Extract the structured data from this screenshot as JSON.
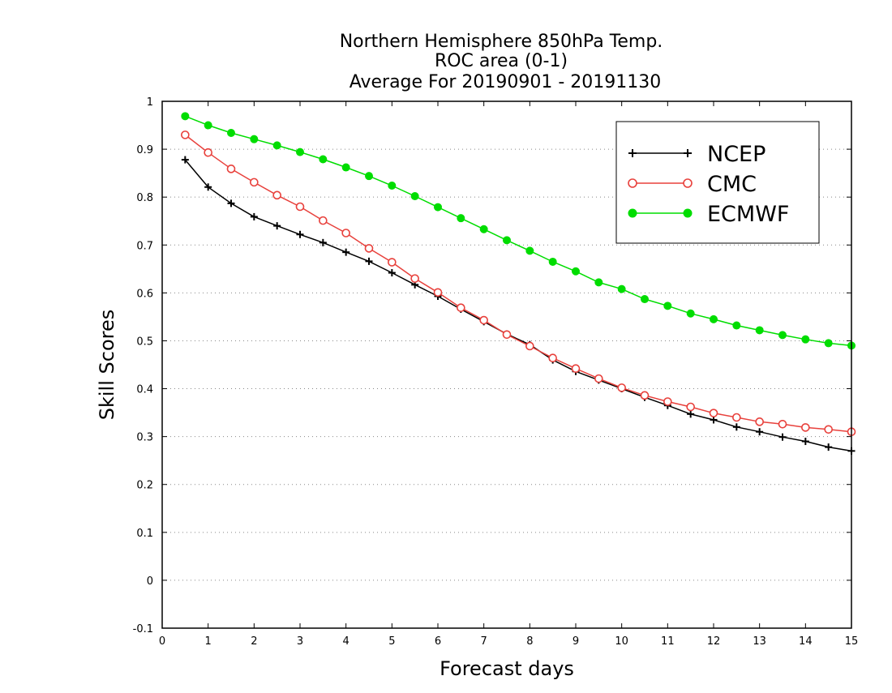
{
  "chart_data": {
    "type": "line",
    "title": [
      "Northern Hemisphere 850hPa Temp.",
      "ROC area (0-1)",
      "Average For 20190901 - 20191130"
    ],
    "xlabel": "Forecast days",
    "ylabel": "Skill Scores",
    "xlim": [
      0,
      15
    ],
    "ylim": [
      -0.1,
      1
    ],
    "x_ticks": [
      0,
      1,
      2,
      3,
      4,
      5,
      6,
      7,
      8,
      9,
      10,
      11,
      12,
      13,
      14,
      15
    ],
    "y_ticks": [
      -0.1,
      0,
      0.1,
      0.2,
      0.3,
      0.4,
      0.5,
      0.6,
      0.7,
      0.8,
      0.9,
      1
    ],
    "y_tick_labels": [
      "-0.1",
      "0",
      "0.1",
      "0.2",
      "0.3",
      "0.4",
      "0.5",
      "0.6",
      "0.7",
      "0.8",
      "0.9",
      "1"
    ],
    "grid": "horizontal dotted",
    "legend_position": "top-right",
    "x": [
      0.5,
      1,
      1.5,
      2,
      2.5,
      3,
      3.5,
      4,
      4.5,
      5,
      5.5,
      6,
      6.5,
      7,
      7.5,
      8,
      8.5,
      9,
      9.5,
      10,
      10.5,
      11,
      11.5,
      12,
      12.5,
      13,
      13.5,
      14,
      14.5,
      15
    ],
    "series": [
      {
        "name": "NCEP",
        "color": "#000000",
        "marker": "plus",
        "values": [
          0.878,
          0.821,
          0.787,
          0.759,
          0.74,
          0.722,
          0.705,
          0.685,
          0.666,
          0.642,
          0.617,
          0.593,
          0.566,
          0.54,
          0.514,
          0.492,
          0.46,
          0.436,
          0.418,
          0.4,
          0.382,
          0.365,
          0.347,
          0.335,
          0.32,
          0.31,
          0.299,
          0.29,
          0.278,
          0.27
        ]
      },
      {
        "name": "CMC",
        "color": "#e8413c",
        "marker": "open-circle",
        "values": [
          0.93,
          0.893,
          0.859,
          0.831,
          0.804,
          0.78,
          0.751,
          0.725,
          0.693,
          0.664,
          0.63,
          0.601,
          0.569,
          0.543,
          0.513,
          0.489,
          0.464,
          0.442,
          0.421,
          0.402,
          0.386,
          0.373,
          0.362,
          0.349,
          0.34,
          0.331,
          0.326,
          0.319,
          0.315,
          0.31
        ]
      },
      {
        "name": "ECMWF",
        "color": "#00dd00",
        "marker": "filled-circle",
        "values": [
          0.969,
          0.95,
          0.934,
          0.921,
          0.908,
          0.894,
          0.879,
          0.862,
          0.844,
          0.824,
          0.802,
          0.779,
          0.756,
          0.733,
          0.71,
          0.688,
          0.665,
          0.645,
          0.622,
          0.608,
          0.587,
          0.573,
          0.557,
          0.545,
          0.532,
          0.522,
          0.512,
          0.503,
          0.495,
          0.49
        ]
      }
    ]
  }
}
